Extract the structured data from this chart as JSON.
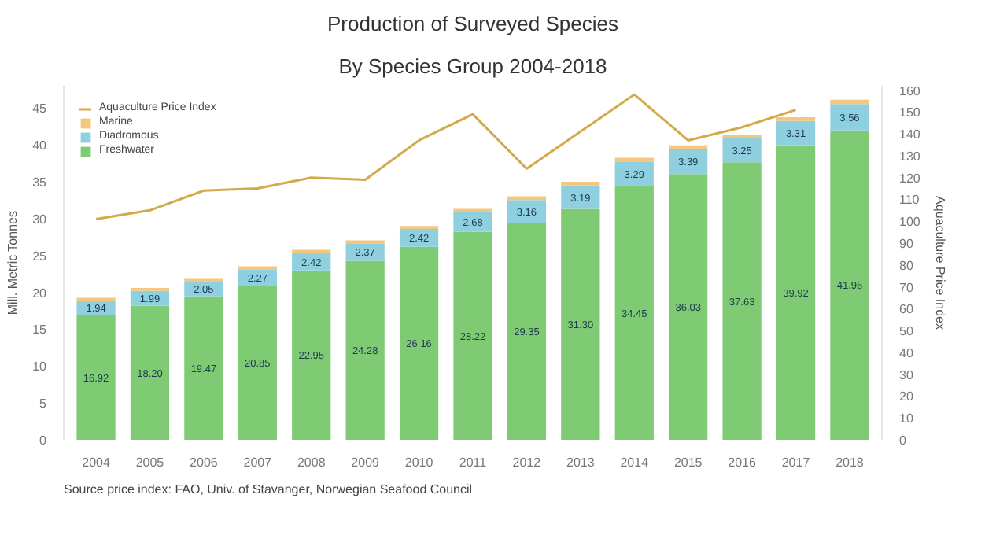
{
  "chart_data": {
    "type": "bar",
    "title": "Production of Surveyed Species",
    "subtitle": "By Species Group 2004-2018",
    "ylabel": "Mill. Metric Tonnes",
    "y2label": "Aquaculture Price Index",
    "categories": [
      "2004",
      "2005",
      "2006",
      "2007",
      "2008",
      "2009",
      "2010",
      "2011",
      "2012",
      "2013",
      "2014",
      "2015",
      "2016",
      "2017",
      "2018"
    ],
    "stacked": true,
    "series": [
      {
        "name": "Freshwater",
        "color": "#7ecb74",
        "values": [
          16.92,
          18.2,
          19.47,
          20.85,
          22.95,
          24.28,
          26.16,
          28.22,
          29.35,
          31.3,
          34.45,
          36.03,
          37.63,
          39.92,
          41.96
        ],
        "value_labels": [
          "16.92",
          "18.20",
          "19.47",
          "20.85",
          "22.95",
          "24.28",
          "26.16",
          "28.22",
          "29.35",
          "31.30",
          "34.45",
          "36.03",
          "37.63",
          "39.92",
          "41.96"
        ]
      },
      {
        "name": "Diadromous",
        "color": "#8fd0e0",
        "values": [
          1.94,
          1.99,
          2.05,
          2.27,
          2.42,
          2.37,
          2.42,
          2.68,
          3.16,
          3.19,
          3.29,
          3.39,
          3.25,
          3.31,
          3.56
        ],
        "value_labels": [
          "1.94",
          "1.99",
          "2.05",
          "2.27",
          "2.42",
          "2.37",
          "2.42",
          "2.68",
          "3.16",
          "3.19",
          "3.29",
          "3.39",
          "3.25",
          "3.31",
          "3.56"
        ]
      },
      {
        "name": "Marine",
        "color": "#f5c77e",
        "values": [
          0.4,
          0.4,
          0.4,
          0.4,
          0.4,
          0.4,
          0.4,
          0.4,
          0.5,
          0.5,
          0.5,
          0.5,
          0.5,
          0.5,
          0.6
        ]
      },
      {
        "name": "Aquaculture Price Index",
        "type": "line",
        "axis": "y2",
        "color": "#d4a94a",
        "values": [
          101,
          105,
          114,
          115,
          120,
          119,
          137,
          149,
          124,
          141,
          158,
          137,
          143,
          151,
          null
        ]
      }
    ],
    "ylim": [
      0,
      48
    ],
    "yticks": [
      0,
      5,
      10,
      15,
      20,
      25,
      30,
      35,
      40,
      45
    ],
    "y2lim": [
      0,
      162
    ],
    "y2ticks": [
      0,
      10,
      20,
      30,
      40,
      50,
      60,
      70,
      80,
      90,
      100,
      110,
      120,
      130,
      140,
      150,
      160
    ],
    "grid": false,
    "legend": "top left",
    "annotations": [
      "Source price index: FAO, Univ. of Stavanger, Norwegian Seafood Council"
    ]
  }
}
